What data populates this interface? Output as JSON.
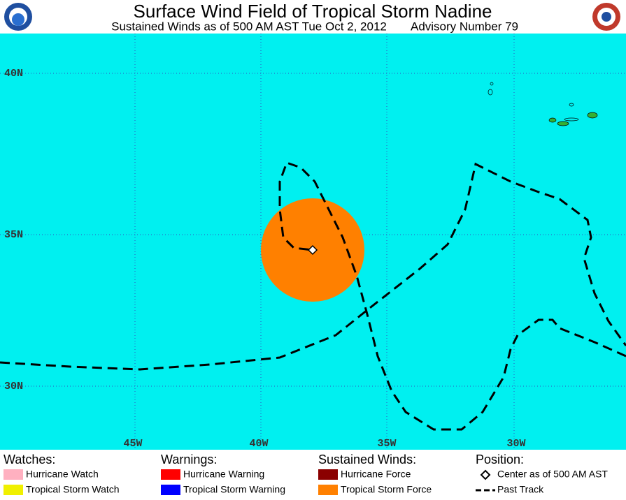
{
  "header": {
    "title": "Surface Wind Field of Tropical Storm Nadine",
    "subtitle": "Sustained Winds as of 500 AM AST Tue Oct 2, 2012",
    "advisory": "Advisory Number 79"
  },
  "map": {
    "lat_labels": [
      "40N",
      "35N",
      "30N"
    ],
    "lon_labels": [
      "45W",
      "40W",
      "35W",
      "30W"
    ]
  },
  "legend": {
    "watches": {
      "heading": "Watches:",
      "items": [
        "Hurricane Watch",
        "Tropical Storm Watch"
      ]
    },
    "warnings": {
      "heading": "Warnings:",
      "items": [
        "Hurricane Warning",
        "Tropical Storm Warning"
      ]
    },
    "winds": {
      "heading": "Sustained Winds:",
      "items": [
        "Hurricane Force",
        "Tropical Storm Force"
      ]
    },
    "position": {
      "heading": "Position:",
      "items": [
        "Center as of 500 AM AST",
        "Past Track"
      ]
    }
  }
}
